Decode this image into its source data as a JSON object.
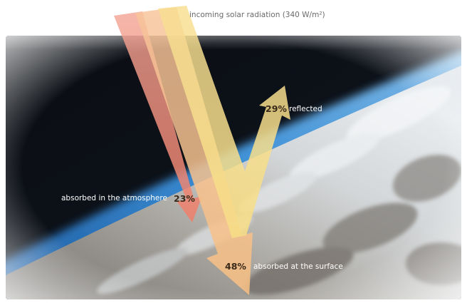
{
  "title": "incoming solar radiation (340 W/m²)",
  "flows": {
    "reflected": {
      "percent": "29%",
      "label": "reflected"
    },
    "atmosphere": {
      "percent": "23%",
      "label": "absorbed in the atmosphere"
    },
    "surface": {
      "percent": "48%",
      "label": "absorbed at the surface"
    }
  },
  "colors": {
    "space": "#05080c",
    "atmosphere_glow": "#3d8fd6",
    "clouds": "#e8ecef",
    "arrow_red": "#f08a7a",
    "arrow_orange": "#f6c08a",
    "arrow_yellow": "#f7e08a"
  }
}
